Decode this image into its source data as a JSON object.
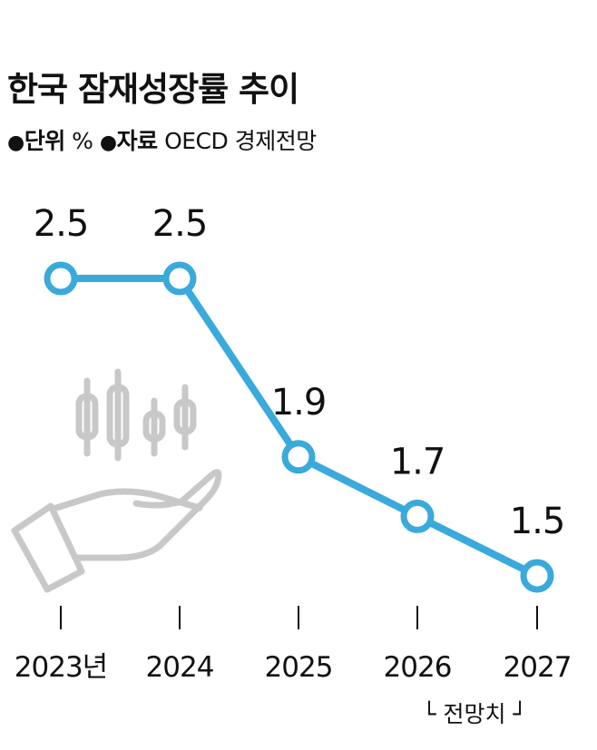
{
  "title": "한국 잠재성장률 추이",
  "meta": {
    "unit_key": "단위",
    "unit_value": "%",
    "source_key": "자료",
    "source_value": "OECD 경제전망",
    "bullet": "●"
  },
  "forecast_label": "└ 전망치 ┘",
  "colors": {
    "line": "#3aa9dc",
    "icon": "#c8c8c8",
    "text": "#111111"
  },
  "icon": "hand-holding-candlestick-icon",
  "chart_data": {
    "type": "line",
    "title": "한국 잠재성장률 추이",
    "categories": [
      "2023년",
      "2024",
      "2025",
      "2026",
      "2027"
    ],
    "values": [
      2.5,
      2.5,
      1.9,
      1.7,
      1.5
    ],
    "data_labels": [
      "2.5",
      "2.5",
      "1.9",
      "1.7",
      "1.5"
    ],
    "xlabel": "",
    "ylabel": "",
    "unit": "%",
    "ylim": [
      1.5,
      2.5
    ],
    "grid": false,
    "forecast_from": "2026"
  }
}
